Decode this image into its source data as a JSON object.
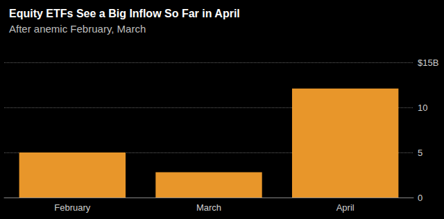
{
  "chart_data": {
    "type": "bar",
    "title": "Equity ETFs See a Big Inflow So Far in April",
    "subtitle": "After anemic February, March",
    "categories": [
      "February",
      "March",
      "April"
    ],
    "values": [
      5,
      2.8,
      12.1
    ],
    "color": "#e8962a",
    "ylim": [
      0,
      15
    ],
    "yticks": [
      0,
      5,
      10,
      {
        "value": 15,
        "label": "$15B"
      }
    ],
    "grid": true
  }
}
